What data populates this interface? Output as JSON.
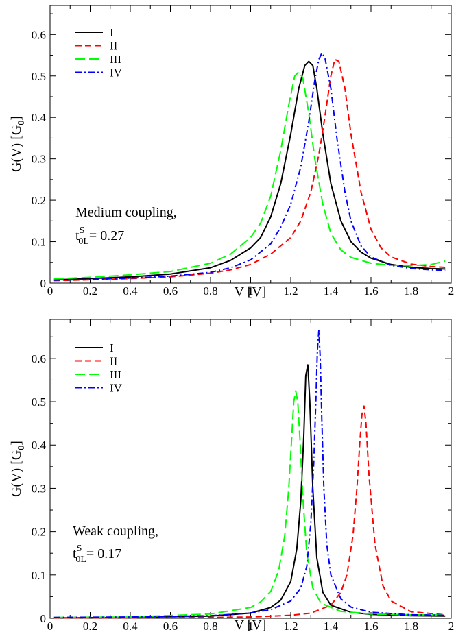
{
  "chart_data": [
    {
      "type": "line",
      "xlabel": "V [V]",
      "ylabel": "G(V) [G",
      "ylabel_sub": "0",
      "ylabel_close": "]",
      "xlim": [
        0,
        2
      ],
      "ylim": [
        0,
        0.67
      ],
      "xticks": [
        0,
        0.2,
        0.4,
        0.6,
        0.8,
        1,
        1.2,
        1.4,
        1.6,
        1.8,
        2
      ],
      "xtick_labels": [
        "0",
        "0.2",
        "0.4",
        "0.6",
        "0.8",
        "1",
        "1.2",
        "1.4",
        "1.6",
        "1.8",
        "2"
      ],
      "yticks": [
        0,
        0.1,
        0.2,
        0.3,
        0.4,
        0.5,
        0.6
      ],
      "ytick_labels": [
        "0",
        "0.1",
        "0.2",
        "0.3",
        "0.4",
        "0.5",
        "0.6"
      ],
      "grid": false,
      "legend_position": "top-left",
      "annotation": {
        "line1": "Medium coupling,",
        "t": "t",
        "sup": "S",
        "sub": "0L",
        "value": "= 0.27"
      },
      "series": [
        {
          "name": "I",
          "color": "#000000",
          "dash": "solid",
          "x": [
            0.02,
            0.2,
            0.4,
            0.6,
            0.8,
            0.9,
            1.0,
            1.05,
            1.1,
            1.15,
            1.2,
            1.24,
            1.27,
            1.29,
            1.31,
            1.33,
            1.36,
            1.4,
            1.45,
            1.5,
            1.55,
            1.6,
            1.7,
            1.8,
            1.9,
            1.97
          ],
          "y": [
            0.008,
            0.011,
            0.015,
            0.022,
            0.037,
            0.055,
            0.085,
            0.11,
            0.16,
            0.24,
            0.36,
            0.47,
            0.525,
            0.535,
            0.525,
            0.47,
            0.36,
            0.24,
            0.15,
            0.1,
            0.075,
            0.06,
            0.045,
            0.038,
            0.035,
            0.034
          ]
        },
        {
          "name": "II",
          "color": "#ff0000",
          "dash": "dashed",
          "x": [
            0.02,
            0.2,
            0.4,
            0.6,
            0.8,
            0.9,
            1.0,
            1.1,
            1.2,
            1.25,
            1.3,
            1.34,
            1.37,
            1.4,
            1.42,
            1.44,
            1.47,
            1.5,
            1.55,
            1.6,
            1.65,
            1.7,
            1.8,
            1.9,
            1.97
          ],
          "y": [
            0.006,
            0.008,
            0.011,
            0.015,
            0.024,
            0.032,
            0.045,
            0.07,
            0.11,
            0.15,
            0.22,
            0.31,
            0.4,
            0.5,
            0.54,
            0.535,
            0.47,
            0.36,
            0.22,
            0.13,
            0.085,
            0.063,
            0.046,
            0.04,
            0.038
          ]
        },
        {
          "name": "III",
          "color": "#00ff00",
          "dash": "long-dash",
          "x": [
            0.02,
            0.2,
            0.4,
            0.6,
            0.8,
            0.9,
            1.0,
            1.05,
            1.1,
            1.15,
            1.19,
            1.22,
            1.24,
            1.26,
            1.29,
            1.32,
            1.36,
            1.4,
            1.45,
            1.5,
            1.6,
            1.7,
            1.8,
            1.9,
            1.97
          ],
          "y": [
            0.01,
            0.014,
            0.02,
            0.028,
            0.048,
            0.07,
            0.11,
            0.145,
            0.21,
            0.32,
            0.43,
            0.5,
            0.51,
            0.495,
            0.41,
            0.3,
            0.19,
            0.12,
            0.08,
            0.062,
            0.048,
            0.043,
            0.042,
            0.045,
            0.053
          ]
        },
        {
          "name": "IV",
          "color": "#0000ff",
          "dash": "dash-dot",
          "x": [
            0.02,
            0.2,
            0.4,
            0.6,
            0.8,
            0.9,
            1.0,
            1.1,
            1.15,
            1.2,
            1.25,
            1.29,
            1.32,
            1.34,
            1.355,
            1.37,
            1.4,
            1.43,
            1.47,
            1.5,
            1.55,
            1.6,
            1.7,
            1.8,
            1.9,
            1.97
          ],
          "y": [
            0.007,
            0.009,
            0.012,
            0.017,
            0.026,
            0.037,
            0.056,
            0.095,
            0.135,
            0.19,
            0.28,
            0.39,
            0.49,
            0.54,
            0.555,
            0.545,
            0.47,
            0.35,
            0.22,
            0.15,
            0.09,
            0.063,
            0.043,
            0.035,
            0.032,
            0.031
          ]
        }
      ]
    },
    {
      "type": "line",
      "xlabel": "V [V]",
      "ylabel": "G(V) [G",
      "ylabel_sub": "0",
      "ylabel_close": "]",
      "xlim": [
        0,
        2
      ],
      "ylim": [
        0,
        0.69
      ],
      "xticks": [
        0,
        0.2,
        0.4,
        0.6,
        0.8,
        1,
        1.2,
        1.4,
        1.6,
        1.8,
        2
      ],
      "xtick_labels": [
        "0",
        "0.2",
        "0.4",
        "0.6",
        "0.8",
        "1",
        "1.2",
        "1.4",
        "1.6",
        "1.8",
        "2"
      ],
      "yticks": [
        0,
        0.1,
        0.2,
        0.3,
        0.4,
        0.5,
        0.6
      ],
      "ytick_labels": [
        "0",
        "0.1",
        "0.2",
        "0.3",
        "0.4",
        "0.5",
        "0.6"
      ],
      "grid": false,
      "legend_position": "top-left",
      "annotation": {
        "line1": "Weak coupling,",
        "t": "t",
        "sup": "S",
        "sub": "0L",
        "value": "= 0.17"
      },
      "series": [
        {
          "name": "I",
          "color": "#000000",
          "dash": "solid",
          "x": [
            0.02,
            0.4,
            0.8,
            1.0,
            1.1,
            1.15,
            1.2,
            1.23,
            1.25,
            1.265,
            1.275,
            1.285,
            1.295,
            1.31,
            1.33,
            1.36,
            1.4,
            1.5,
            1.6,
            1.8,
            1.97
          ],
          "y": [
            0.001,
            0.002,
            0.005,
            0.012,
            0.025,
            0.042,
            0.085,
            0.16,
            0.27,
            0.42,
            0.56,
            0.585,
            0.5,
            0.3,
            0.14,
            0.06,
            0.03,
            0.014,
            0.009,
            0.006,
            0.005
          ]
        },
        {
          "name": "II",
          "color": "#ff0000",
          "dash": "dashed",
          "x": [
            0.02,
            0.4,
            0.8,
            1.0,
            1.2,
            1.3,
            1.4,
            1.45,
            1.48,
            1.51,
            1.53,
            1.545,
            1.555,
            1.565,
            1.575,
            1.59,
            1.62,
            1.66,
            1.7,
            1.8,
            1.97
          ],
          "y": [
            0.001,
            0.001,
            0.002,
            0.003,
            0.007,
            0.012,
            0.03,
            0.06,
            0.1,
            0.19,
            0.3,
            0.41,
            0.47,
            0.49,
            0.45,
            0.33,
            0.17,
            0.075,
            0.04,
            0.015,
            0.008
          ]
        },
        {
          "name": "III",
          "color": "#00ff00",
          "dash": "long-dash",
          "x": [
            0.02,
            0.4,
            0.8,
            1.0,
            1.05,
            1.1,
            1.14,
            1.17,
            1.19,
            1.205,
            1.215,
            1.225,
            1.235,
            1.245,
            1.26,
            1.28,
            1.31,
            1.35,
            1.45,
            1.6,
            1.8,
            1.97
          ],
          "y": [
            0.002,
            0.003,
            0.01,
            0.025,
            0.038,
            0.062,
            0.11,
            0.19,
            0.3,
            0.42,
            0.5,
            0.525,
            0.5,
            0.42,
            0.28,
            0.15,
            0.07,
            0.035,
            0.016,
            0.01,
            0.008,
            0.008
          ]
        },
        {
          "name": "IV",
          "color": "#0000ff",
          "dash": "dash-dot",
          "x": [
            0.02,
            0.4,
            0.8,
            1.0,
            1.1,
            1.2,
            1.25,
            1.28,
            1.3,
            1.315,
            1.325,
            1.333,
            1.34,
            1.347,
            1.355,
            1.365,
            1.38,
            1.4,
            1.45,
            1.5,
            1.6,
            1.8,
            1.97
          ],
          "y": [
            0.002,
            0.003,
            0.006,
            0.012,
            0.02,
            0.04,
            0.07,
            0.12,
            0.22,
            0.36,
            0.5,
            0.62,
            0.665,
            0.6,
            0.46,
            0.3,
            0.17,
            0.1,
            0.045,
            0.026,
            0.014,
            0.008,
            0.007
          ]
        }
      ]
    }
  ]
}
